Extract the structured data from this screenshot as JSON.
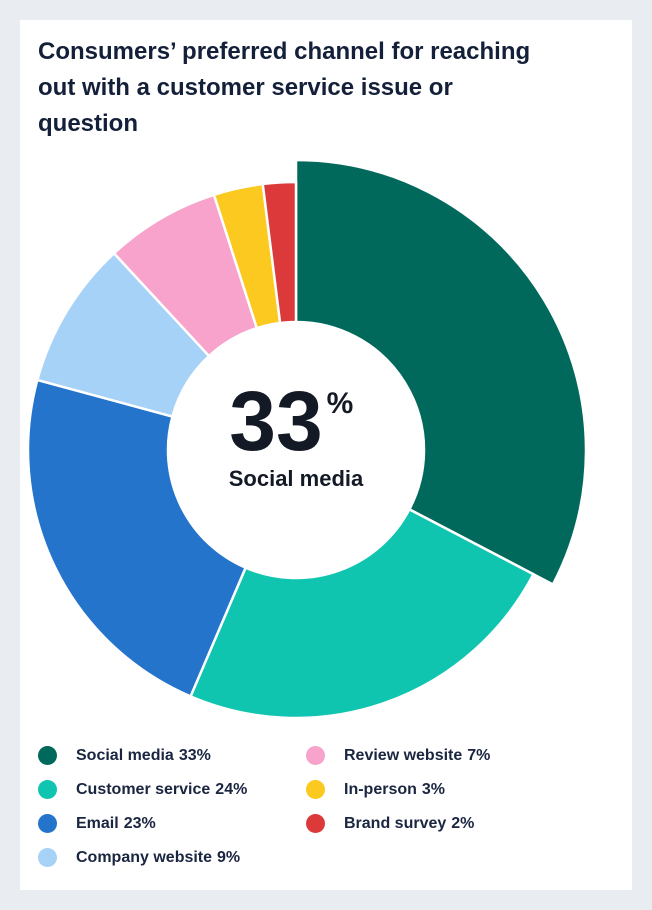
{
  "chart_data": {
    "type": "pie",
    "title": "Consumers’ preferred channel for reaching out with a customer service issue or question",
    "center": {
      "value": "33",
      "unit": "%",
      "label": "Social media"
    },
    "slices": [
      {
        "label": "Social media",
        "value": 33,
        "value_text": "33%",
        "color": "#00695c"
      },
      {
        "label": "Customer service",
        "value": 24,
        "value_text": "24%",
        "color": "#0fc5b0"
      },
      {
        "label": "Email",
        "value": 23,
        "value_text": "23%",
        "color": "#2574cc"
      },
      {
        "label": "Company website",
        "value": 9,
        "value_text": "9%",
        "color": "#a7d2f7"
      },
      {
        "label": "Review website",
        "value": 7,
        "value_text": "7%",
        "color": "#f7a3cb"
      },
      {
        "label": "In-person",
        "value": 3,
        "value_text": "3%",
        "color": "#fbc91f"
      },
      {
        "label": "Brand survey",
        "value": 2,
        "value_text": "2%",
        "color": "#dc3a3a"
      }
    ],
    "legend_position": "bottom"
  }
}
